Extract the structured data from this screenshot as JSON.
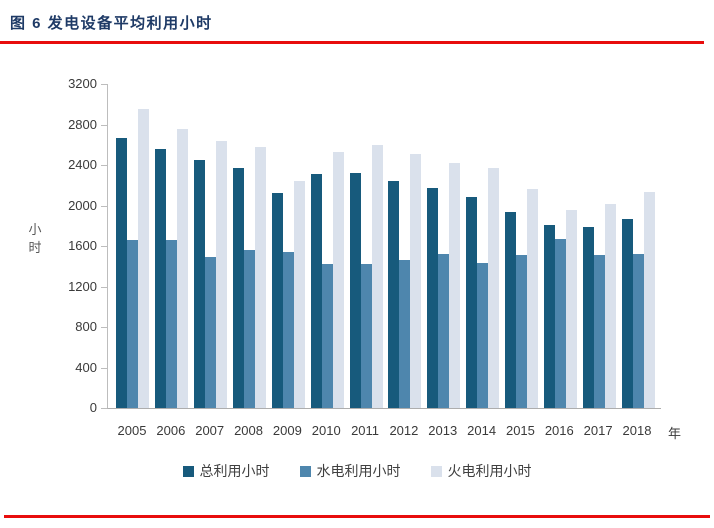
{
  "figure": {
    "title": "图 6 发电设备平均利用小时"
  },
  "chart_data": {
    "type": "bar",
    "title": "发电设备平均利用小时",
    "categories": [
      "2005",
      "2006",
      "2007",
      "2008",
      "2009",
      "2010",
      "2011",
      "2012",
      "2013",
      "2014",
      "2015",
      "2016",
      "2017",
      "2018"
    ],
    "x_unit_suffix": "年",
    "ylabel": "小时",
    "ylim": [
      0,
      3200
    ],
    "ytick_step": 400,
    "yticks": [
      0,
      400,
      800,
      1200,
      1600,
      2000,
      2400,
      2800,
      3200
    ],
    "grid": false,
    "legend_position": "bottom",
    "series": [
      {
        "key": "total",
        "name": "总利用小时",
        "color": "#175A7C",
        "values": [
          2670,
          2560,
          2450,
          2370,
          2125,
          2315,
          2320,
          2240,
          2175,
          2085,
          1940,
          1805,
          1785,
          1870
        ]
      },
      {
        "key": "hydro",
        "name": "水电利用小时",
        "color": "#4E86AD",
        "values": [
          1655,
          1655,
          1490,
          1560,
          1540,
          1420,
          1420,
          1460,
          1525,
          1435,
          1510,
          1670,
          1510,
          1520
        ]
      },
      {
        "key": "thermal",
        "name": "火电利用小时",
        "color": "#DAE1EC",
        "values": [
          2950,
          2760,
          2635,
          2575,
          2240,
          2530,
          2600,
          2510,
          2420,
          2370,
          2160,
          1960,
          2010,
          2130
        ]
      }
    ]
  },
  "colors": {
    "title_text": "#1E3A66",
    "rule_red": "#E80D0D",
    "axis_line": "#BDBDBD",
    "axis_text": "#3A3A3A"
  }
}
